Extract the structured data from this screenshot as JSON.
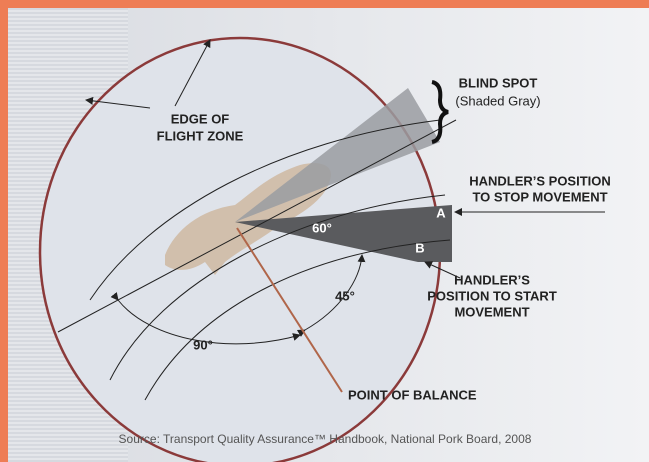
{
  "labels": {
    "edge_of_flight_zone": [
      "EDGE OF",
      "FLIGHT ZONE"
    ],
    "blind_spot": {
      "title": "BLIND SPOT",
      "note": "(Shaded Gray)"
    },
    "stop_position": [
      "HANDLER’S POSITION",
      "TO STOP MOVEMENT"
    ],
    "start_position": [
      "HANDLER’S",
      "POSITION TO START",
      "MOVEMENT"
    ],
    "point_a": "A",
    "point_b": "B",
    "angle_60": "60°",
    "angle_45": "45°",
    "angle_90": "90°",
    "point_of_balance": "POINT OF BALANCE"
  },
  "source": "Source: Transport Quality Assurance™ Handbook, National Pork Board, 2008"
}
